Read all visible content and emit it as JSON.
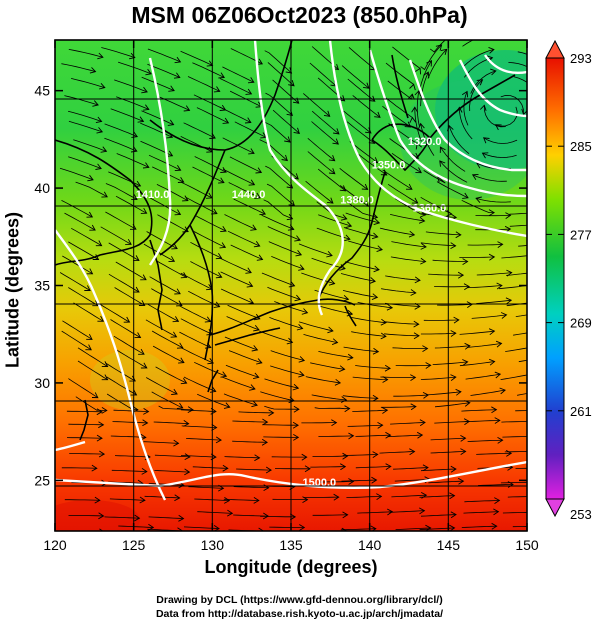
{
  "title": "MSM 06Z06Oct2023 (850.0hPa)",
  "x_axis": {
    "label": "Longitude (degrees)",
    "range": [
      120,
      150
    ],
    "ticks": [
      120,
      125,
      130,
      135,
      140,
      145,
      150
    ]
  },
  "y_axis": {
    "label": "Latitude  (degrees)",
    "range": [
      22.4,
      47.6
    ],
    "ticks": [
      25,
      30,
      35,
      40,
      45
    ]
  },
  "colorbar": {
    "min": 253,
    "max": 293,
    "tick_labels": [
      "293",
      "285",
      "277",
      "269",
      "261",
      "253"
    ],
    "colors": [
      "#e020e0",
      "#2020c0",
      "#00a0ff",
      "#00d0c0",
      "#10c060",
      "#60e000",
      "#c0e000",
      "#ffc000",
      "#ff5000",
      "#e01000"
    ]
  },
  "contour_labels": [
    {
      "text": "1500.0",
      "lon": 136.8,
      "lat": 24.7
    },
    {
      "text": "1440.0",
      "lon": 132.3,
      "lat": 39.5
    },
    {
      "text": "1410.0",
      "lon": 126.2,
      "lat": 39.5
    },
    {
      "text": "1380.0",
      "lon": 139.2,
      "lat": 39.2
    },
    {
      "text": "1350.0",
      "lon": 141.2,
      "lat": 41.0
    },
    {
      "text": "1320.0",
      "lon": 143.5,
      "lat": 42.2
    },
    {
      "text": "1360.0",
      "lon": 143.8,
      "lat": 38.8
    }
  ],
  "credits": {
    "line1": "Drawing by DCL (https://www.gfd-dennou.org/library/dcl/)",
    "line2": "Data from http://database.rish.kyoto-u.ac.jp/arch/jmadata/"
  }
}
